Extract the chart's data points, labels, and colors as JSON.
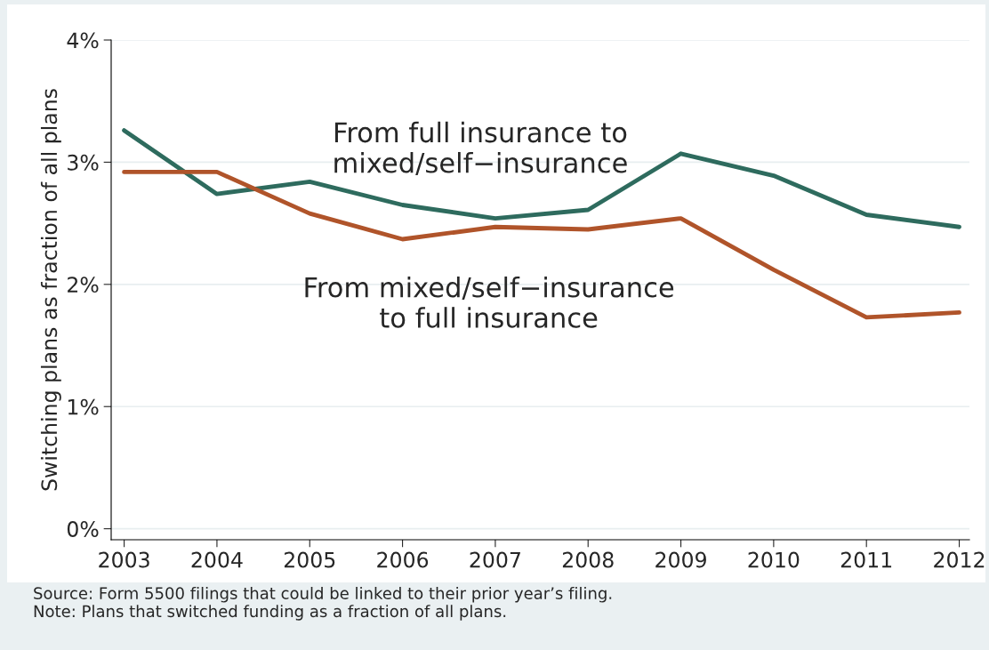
{
  "chart_data": {
    "type": "line",
    "ylabel": "Switching plans as fraction of all plans",
    "x": [
      2003,
      2004,
      2005,
      2006,
      2007,
      2008,
      2009,
      2010,
      2011,
      2012
    ],
    "series": [
      {
        "name": "From full insurance to\nmixed/self−insurance",
        "color": "#2e6b5e",
        "values": [
          3.26,
          2.74,
          2.84,
          2.65,
          2.54,
          2.61,
          3.07,
          2.89,
          2.57,
          2.47
        ]
      },
      {
        "name": "From mixed/self−insurance\nto full insurance",
        "color": "#b0542a",
        "values": [
          2.92,
          2.92,
          2.58,
          2.37,
          2.47,
          2.45,
          2.54,
          2.12,
          1.73,
          1.77
        ]
      }
    ],
    "xlim": [
      2002.86,
      2012.11
    ],
    "xticks": [
      2003,
      2004,
      2005,
      2006,
      2007,
      2008,
      2009,
      2010,
      2011,
      2012
    ],
    "ylim": [
      -0.09,
      4.0
    ],
    "yticks": [
      {
        "value": 0,
        "label": "0%"
      },
      {
        "value": 1,
        "label": "1%"
      },
      {
        "value": 2,
        "label": "2%"
      },
      {
        "value": 3,
        "label": "3%"
      },
      {
        "value": 4,
        "label": "4%"
      }
    ],
    "grid": "y",
    "legend": false,
    "annotations": [
      "Source: Form 5500 filings that could be linked to their prior year’s filing.\nNote: Plans that switched funding as a fraction of all plans."
    ]
  }
}
